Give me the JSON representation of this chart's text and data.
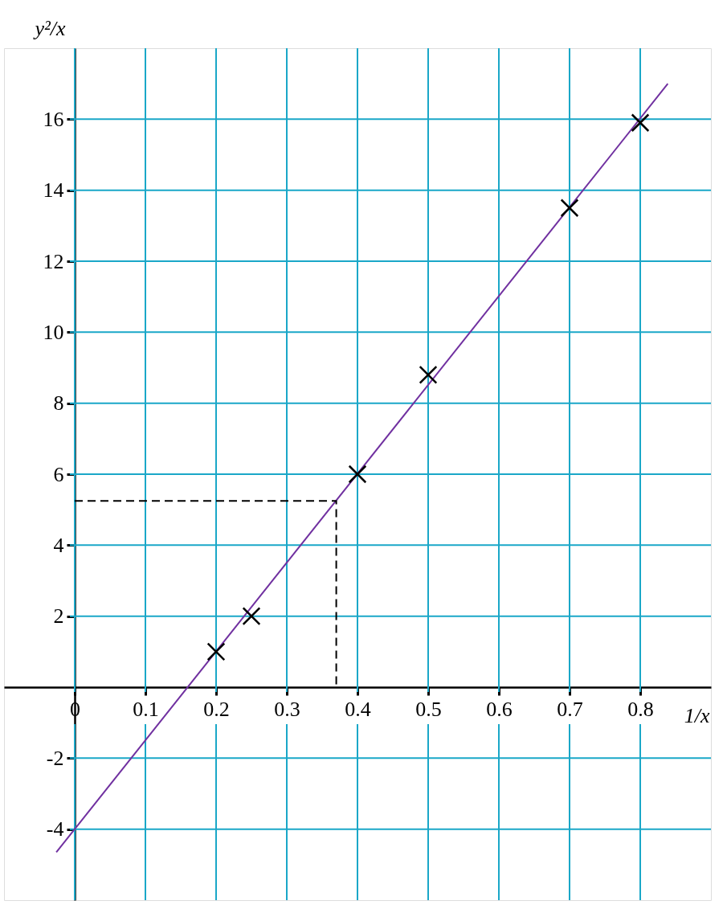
{
  "chart_data": {
    "type": "scatter",
    "xlabel": "1/x",
    "ylabel": "y²/x",
    "xlim": [
      -0.1,
      0.9
    ],
    "ylim": [
      -6,
      18
    ],
    "xticks": [
      {
        "value": 0,
        "label": "0"
      },
      0.1,
      0.2,
      0.3,
      0.4,
      0.5,
      0.6,
      0.7,
      0.8
    ],
    "yticks": [
      -4,
      -2,
      2,
      4,
      6,
      8,
      10,
      12,
      14,
      16
    ],
    "grid": true,
    "series": [
      {
        "type": "scatter",
        "color": "#000000",
        "marker": "cross",
        "x": [
          0.2,
          0.25,
          0.4,
          0.5,
          0.7,
          0.8
        ],
        "values": [
          1,
          2,
          6,
          8.8,
          13.5,
          15.9
        ]
      },
      {
        "type": "line",
        "color": "#7030a0",
        "line_style": "solid",
        "x": [
          -0.026,
          0.839
        ],
        "values": [
          -4.65,
          17.0
        ]
      },
      {
        "type": "line",
        "color": "#000000",
        "line_style": "dashed",
        "x": [
          0,
          0.37,
          0.37
        ],
        "values": [
          5.25,
          5.25,
          0
        ]
      }
    ]
  }
}
